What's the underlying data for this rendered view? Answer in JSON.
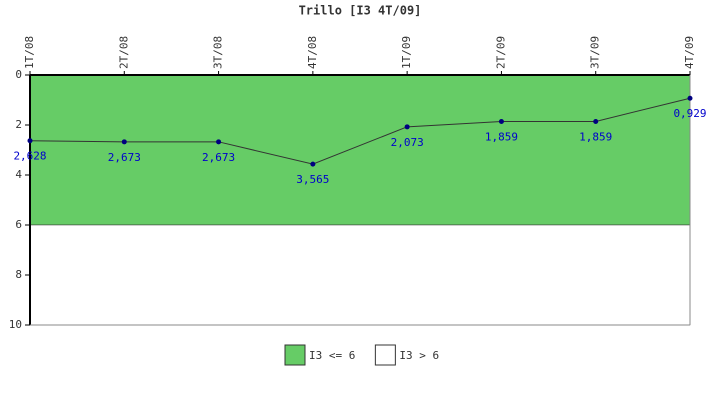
{
  "chart_data": {
    "type": "line",
    "title": "Trillo [I3 4T/09]",
    "categories": [
      "1T/08",
      "2T/08",
      "3T/08",
      "4T/08",
      "1T/09",
      "2T/09",
      "3T/09",
      "4T/09"
    ],
    "series": [
      {
        "color": "#000080",
        "label_color": "#0000cc",
        "values": [
          2.628,
          2.673,
          2.673,
          3.565,
          2.073,
          1.859,
          1.859,
          0.929
        ],
        "value_labels": [
          "2,628",
          "2,673",
          "2,673",
          "3,565",
          "2,073",
          "1,859",
          "1,859",
          "0,929"
        ]
      }
    ],
    "bands": [
      {
        "name": "I3 <= 6",
        "color": "#66cc66",
        "range": [
          0,
          6
        ]
      },
      {
        "name": "I3 > 6",
        "color": "#ffffff",
        "range": [
          6,
          10
        ]
      }
    ],
    "ylim": [
      0,
      10
    ],
    "yticks": [
      0,
      2,
      4,
      6,
      8,
      10
    ],
    "y_inverted": true
  }
}
